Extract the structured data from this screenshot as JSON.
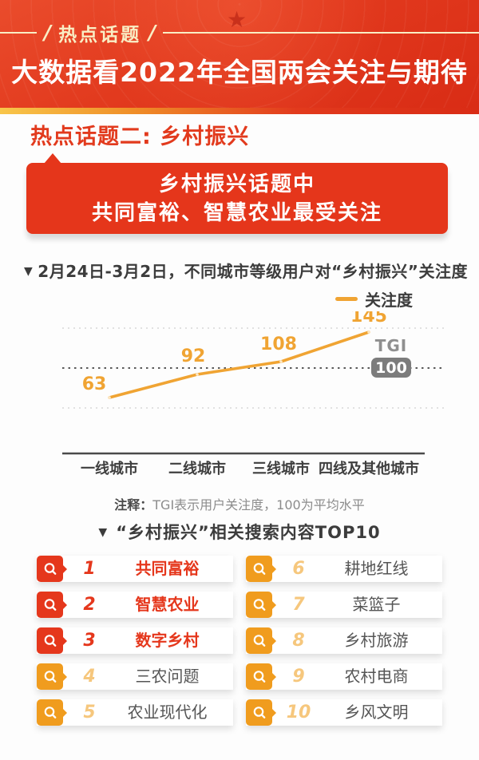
{
  "header": {
    "tag": "热点话题",
    "slash": "/",
    "star_icon": "★",
    "title": "大数据看2022年全国两会关注与期待"
  },
  "section": {
    "heading": "热点话题二: 乡村振兴",
    "callout_line1": "乡村振兴话题中",
    "callout_line2": "共同富裕、智慧农业最受关注"
  },
  "chart_data": {
    "type": "line",
    "marker": "▼",
    "title": "2月24日-3月2日，不同城市等级用户对“乡村振兴”关注度",
    "legend": "关注度",
    "legend_position": "top-right",
    "categories": [
      "一线城市",
      "二线城市",
      "三线城市",
      "四线及其他城市"
    ],
    "series": [
      {
        "name": "关注度",
        "values": [
          63,
          92,
          108,
          145
        ]
      }
    ],
    "baseline": {
      "label": "TGI",
      "value": 100
    },
    "gridlines": [
      50,
      150
    ],
    "ylim": [
      30,
      170
    ],
    "grid": "dotted",
    "line_color": "#f0a433"
  },
  "note": {
    "label": "注释：",
    "text": "TGI表示用户关注度，100为平均水平"
  },
  "top10": {
    "marker": "▼",
    "title": "“乡村振兴”相关搜索内容TOP10",
    "items": [
      {
        "rank": "1",
        "label": "共同富裕",
        "style": "red"
      },
      {
        "rank": "2",
        "label": "智慧农业",
        "style": "red"
      },
      {
        "rank": "3",
        "label": "数字乡村",
        "style": "red"
      },
      {
        "rank": "4",
        "label": "三农问题",
        "style": "orange"
      },
      {
        "rank": "5",
        "label": "农业现代化",
        "style": "orange"
      },
      {
        "rank": "6",
        "label": "耕地红线",
        "style": "orange"
      },
      {
        "rank": "7",
        "label": "菜篮子",
        "style": "orange"
      },
      {
        "rank": "8",
        "label": "乡村旅游",
        "style": "orange"
      },
      {
        "rank": "9",
        "label": "农村电商",
        "style": "orange"
      },
      {
        "rank": "10",
        "label": "乡风文明",
        "style": "orange"
      }
    ]
  },
  "colors": {
    "accent_red": "#e5371c",
    "accent_orange": "#f09c1e",
    "line_orange": "#f0a433",
    "badge_gray": "#7c7c7c",
    "header_red": "#e23a1e",
    "cream": "#f9eec5"
  }
}
